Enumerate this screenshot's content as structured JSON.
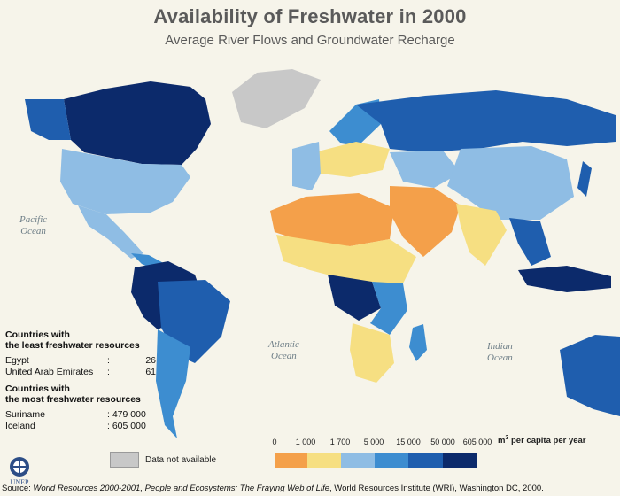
{
  "title": "Availability of Freshwater in 2000",
  "subtitle": "Average River Flows and Groundwater Recharge",
  "oceans": [
    {
      "line1": "Pacific",
      "line2": "Ocean"
    },
    {
      "line1": "Atlantic",
      "line2": "Ocean"
    },
    {
      "line1": "Indian",
      "line2": "Ocean"
    }
  ],
  "least": {
    "heading1": "Countries with",
    "heading2": "the least freshwater resources",
    "rows": [
      {
        "name": "Egypt",
        "sep": ":",
        "value": "26"
      },
      {
        "name": "United Arab Emirates",
        "sep": ":",
        "value": "61"
      }
    ]
  },
  "most": {
    "heading1": "Countries with",
    "heading2": "the most freshwater resources",
    "rows": [
      {
        "name": "Suriname",
        "sep": "",
        "value": ": 479 000"
      },
      {
        "name": "Iceland",
        "sep": "",
        "value": ": 605 000"
      }
    ]
  },
  "legend": {
    "unit_pre": "m",
    "unit_sup": "3",
    "unit_post": " per capita per year",
    "ticks": [
      "0",
      "1 000",
      "1 700",
      "5 000",
      "15 000",
      "50 000",
      "605 000"
    ],
    "colors": [
      "#f4a04a",
      "#f6df82",
      "#8fbde4",
      "#3d8dd0",
      "#1f5eae",
      "#0c2a6b"
    ]
  },
  "no_data": {
    "label": "Data not available",
    "color": "#c8c8c8"
  },
  "logo_text": "UNEP",
  "footer": {
    "prefix": "Source: ",
    "italic": "World Resources 2000-2001, People and Ecosystems: The Fraying Web of Life",
    "rest": ", World Resources Institute (WRI), Washington DC, 2000."
  }
}
